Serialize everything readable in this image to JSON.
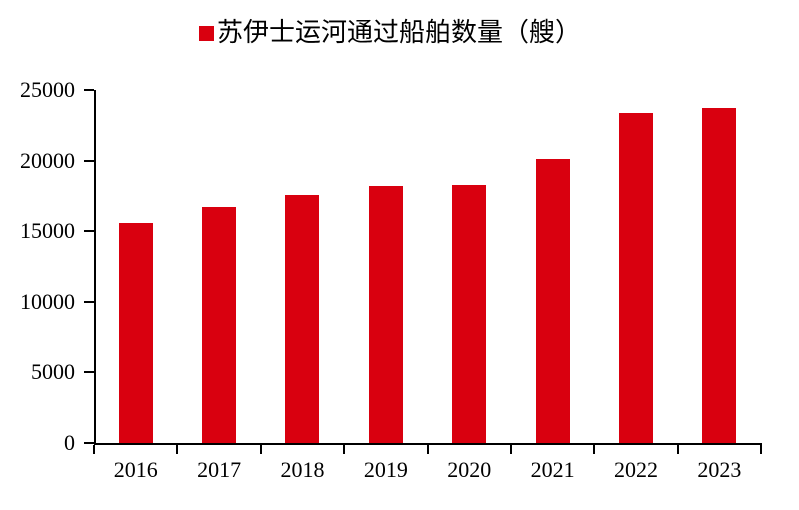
{
  "colors": {
    "bar": "#d9000f",
    "axis": "#000000",
    "text": "#000000",
    "background": "#ffffff"
  },
  "legend": {
    "marker": "red-square",
    "label": "苏伊士运河通过船舶数量（艘）"
  },
  "chart_data": {
    "type": "bar",
    "title": "苏伊士运河通过船舶数量（艘）",
    "categories": [
      "2016",
      "2017",
      "2018",
      "2019",
      "2020",
      "2021",
      "2022",
      "2023"
    ],
    "values": [
      15600,
      16750,
      17600,
      18200,
      18300,
      20100,
      23400,
      23700
    ],
    "xlabel": "",
    "ylabel": "",
    "ylim": [
      0,
      25000
    ],
    "ytick_interval": 5000,
    "ytick_labels": [
      "0",
      "5000",
      "10000",
      "15000",
      "20000",
      "25000"
    ],
    "grid": false,
    "legend_position": "top-center",
    "bar_color": "#d9000f"
  }
}
